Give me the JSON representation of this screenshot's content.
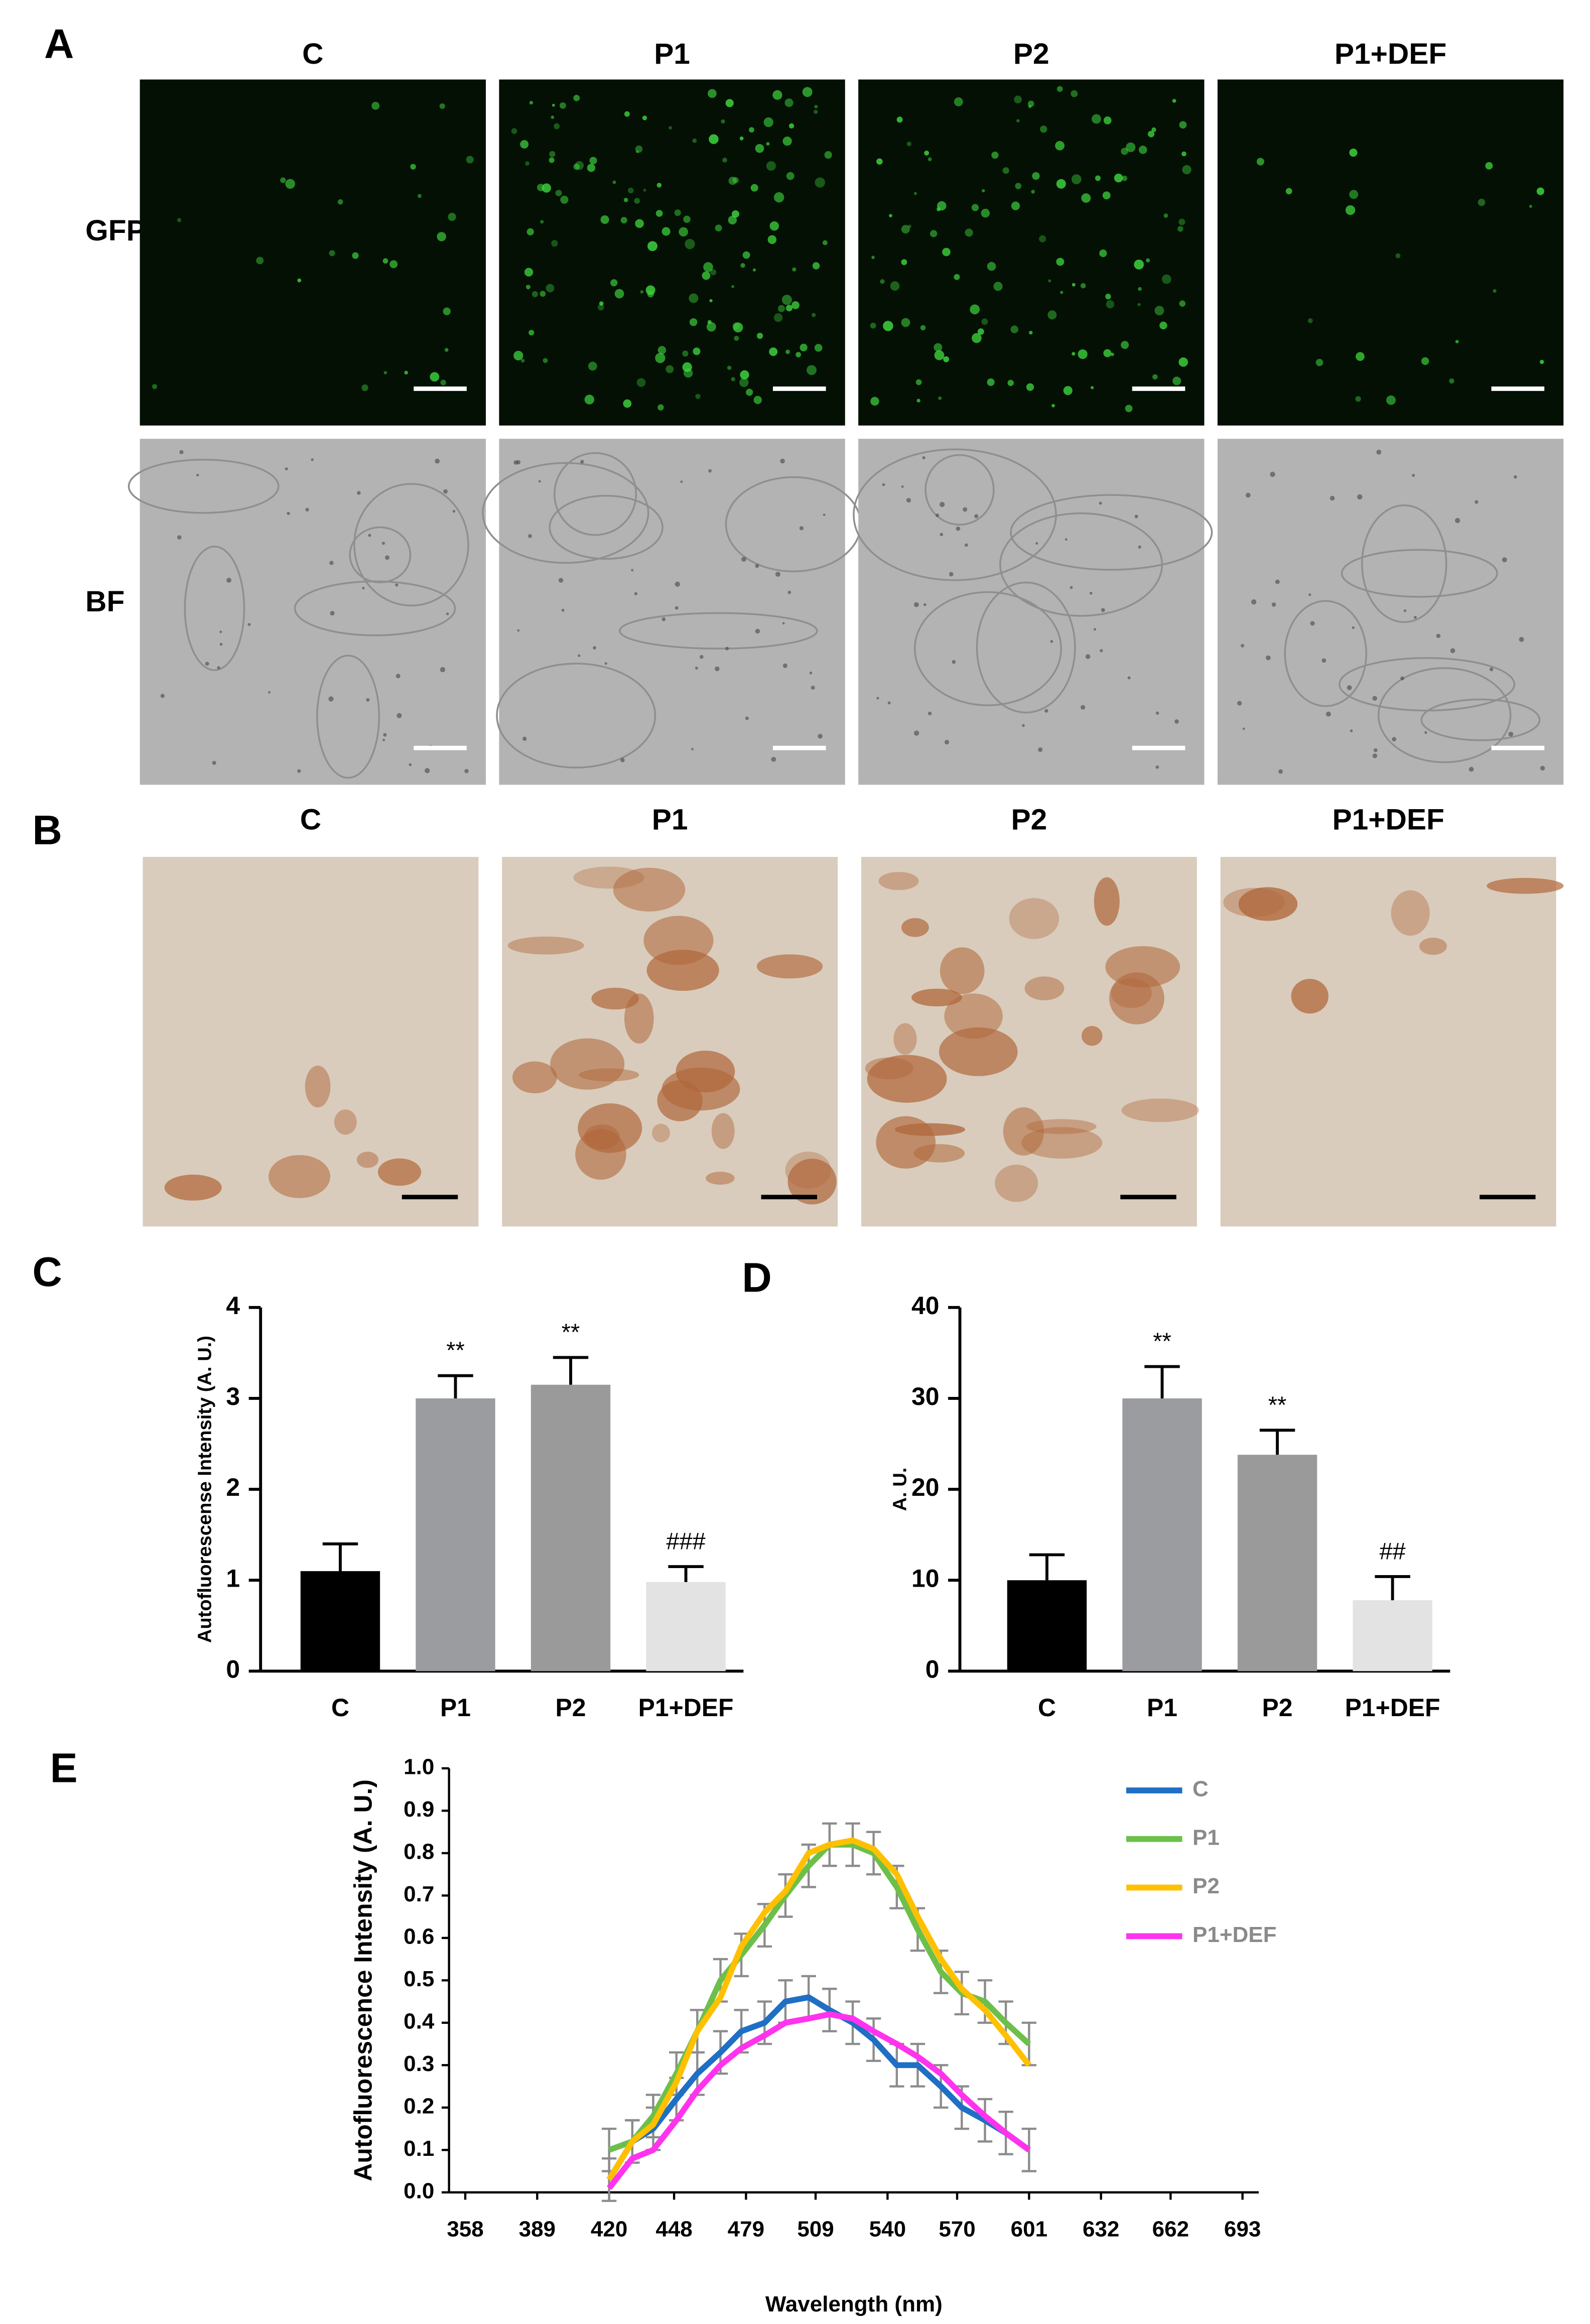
{
  "panels": {
    "A": {
      "label": "A",
      "columns": [
        "C",
        "P1",
        "P2",
        "P1+DEF"
      ],
      "rows": [
        "GFP",
        "BF"
      ]
    },
    "B": {
      "label": "B",
      "columns": [
        "C",
        "P1",
        "P2",
        "P1+DEF"
      ]
    }
  },
  "chart_data": [
    {
      "type": "bar",
      "panel_label": "C",
      "ylabel": "Autofluorescense Intensity (A. U.)",
      "categories": [
        "C",
        "P1",
        "P2",
        "P1+DEF"
      ],
      "values": [
        1.1,
        3.0,
        3.15,
        0.98
      ],
      "errors": [
        0.3,
        0.25,
        0.3,
        0.17
      ],
      "annotations": [
        null,
        "**",
        "**",
        "###"
      ],
      "colors": [
        "#000000",
        "#9b9ca0",
        "#9a9a9a",
        "#e3e3e3"
      ],
      "ylim": [
        0,
        4
      ],
      "yticks": [
        0,
        1,
        2,
        3,
        4
      ]
    },
    {
      "type": "bar",
      "panel_label": "D",
      "ylabel": "A. U.",
      "categories": [
        "C",
        "P1",
        "P2",
        "P1+DEF"
      ],
      "values": [
        10,
        30,
        23.8,
        7.8
      ],
      "errors": [
        2.8,
        3.5,
        2.7,
        2.6
      ],
      "annotations": [
        null,
        "**",
        "**",
        "##"
      ],
      "colors": [
        "#000000",
        "#9b9ca0",
        "#9a9a9a",
        "#e3e3e3"
      ],
      "ylim": [
        0,
        40
      ],
      "yticks": [
        0,
        10,
        20,
        30,
        40
      ]
    },
    {
      "type": "line",
      "panel_label": "E",
      "xlabel": "Wavelength (nm)",
      "ylabel": "Autofluorescence Intensity (A. U.)",
      "x": [
        420,
        430,
        439,
        449,
        458,
        468,
        477,
        487,
        496,
        506,
        515,
        525,
        534,
        544,
        553,
        563,
        572,
        582,
        591,
        601
      ],
      "series": [
        {
          "name": "C",
          "color": "#1f6fc4",
          "values": [
            0.03,
            0.12,
            0.15,
            0.22,
            0.28,
            0.33,
            0.38,
            0.4,
            0.45,
            0.46,
            0.43,
            0.4,
            0.36,
            0.3,
            0.3,
            0.25,
            0.2,
            0.17,
            0.14,
            0.1
          ],
          "errors": [
            0.05,
            0.05,
            0.05,
            0.05,
            0.05,
            0.05,
            0.05,
            0.05,
            0.05,
            0.05,
            0.05,
            0.05,
            0.05,
            0.05,
            0.05,
            0.05,
            0.05,
            0.05,
            0.05,
            0.05
          ]
        },
        {
          "name": "P1",
          "color": "#6cc04a",
          "values": [
            0.1,
            0.12,
            0.18,
            0.28,
            0.38,
            0.5,
            0.56,
            0.63,
            0.7,
            0.77,
            0.82,
            0.82,
            0.8,
            0.72,
            0.62,
            0.52,
            0.47,
            0.45,
            0.4,
            0.35
          ],
          "errors": [
            0.05,
            0.05,
            0.05,
            0.05,
            0.05,
            0.05,
            0.05,
            0.05,
            0.05,
            0.05,
            0.05,
            0.05,
            0.05,
            0.05,
            0.05,
            0.05,
            0.05,
            0.05,
            0.05,
            0.05
          ]
        },
        {
          "name": "P2",
          "color": "#ffc000",
          "values": [
            0.03,
            0.12,
            0.16,
            0.26,
            0.38,
            0.46,
            0.58,
            0.66,
            0.71,
            0.8,
            0.82,
            0.83,
            0.81,
            0.75,
            0.65,
            0.55,
            0.48,
            0.43,
            0.37,
            0.3
          ]
        },
        {
          "name": "P1+DEF",
          "color": "#ff33ee",
          "values": [
            0.01,
            0.08,
            0.1,
            0.17,
            0.24,
            0.3,
            0.34,
            0.37,
            0.4,
            0.41,
            0.42,
            0.41,
            0.38,
            0.35,
            0.32,
            0.28,
            0.23,
            0.18,
            0.14,
            0.1
          ]
        }
      ],
      "xlim": [
        351,
        700
      ],
      "xticks": [
        358,
        389,
        420,
        448,
        479,
        509,
        540,
        570,
        601,
        632,
        662,
        693
      ],
      "ylim": [
        0,
        1
      ],
      "yticks": [
        {
          "value": 0,
          "label": "0.0"
        },
        0.1,
        0.2,
        0.3,
        0.4,
        0.5,
        0.6,
        0.7,
        0.8,
        0.9,
        {
          "value": 1,
          "label": "1.0"
        }
      ]
    }
  ]
}
